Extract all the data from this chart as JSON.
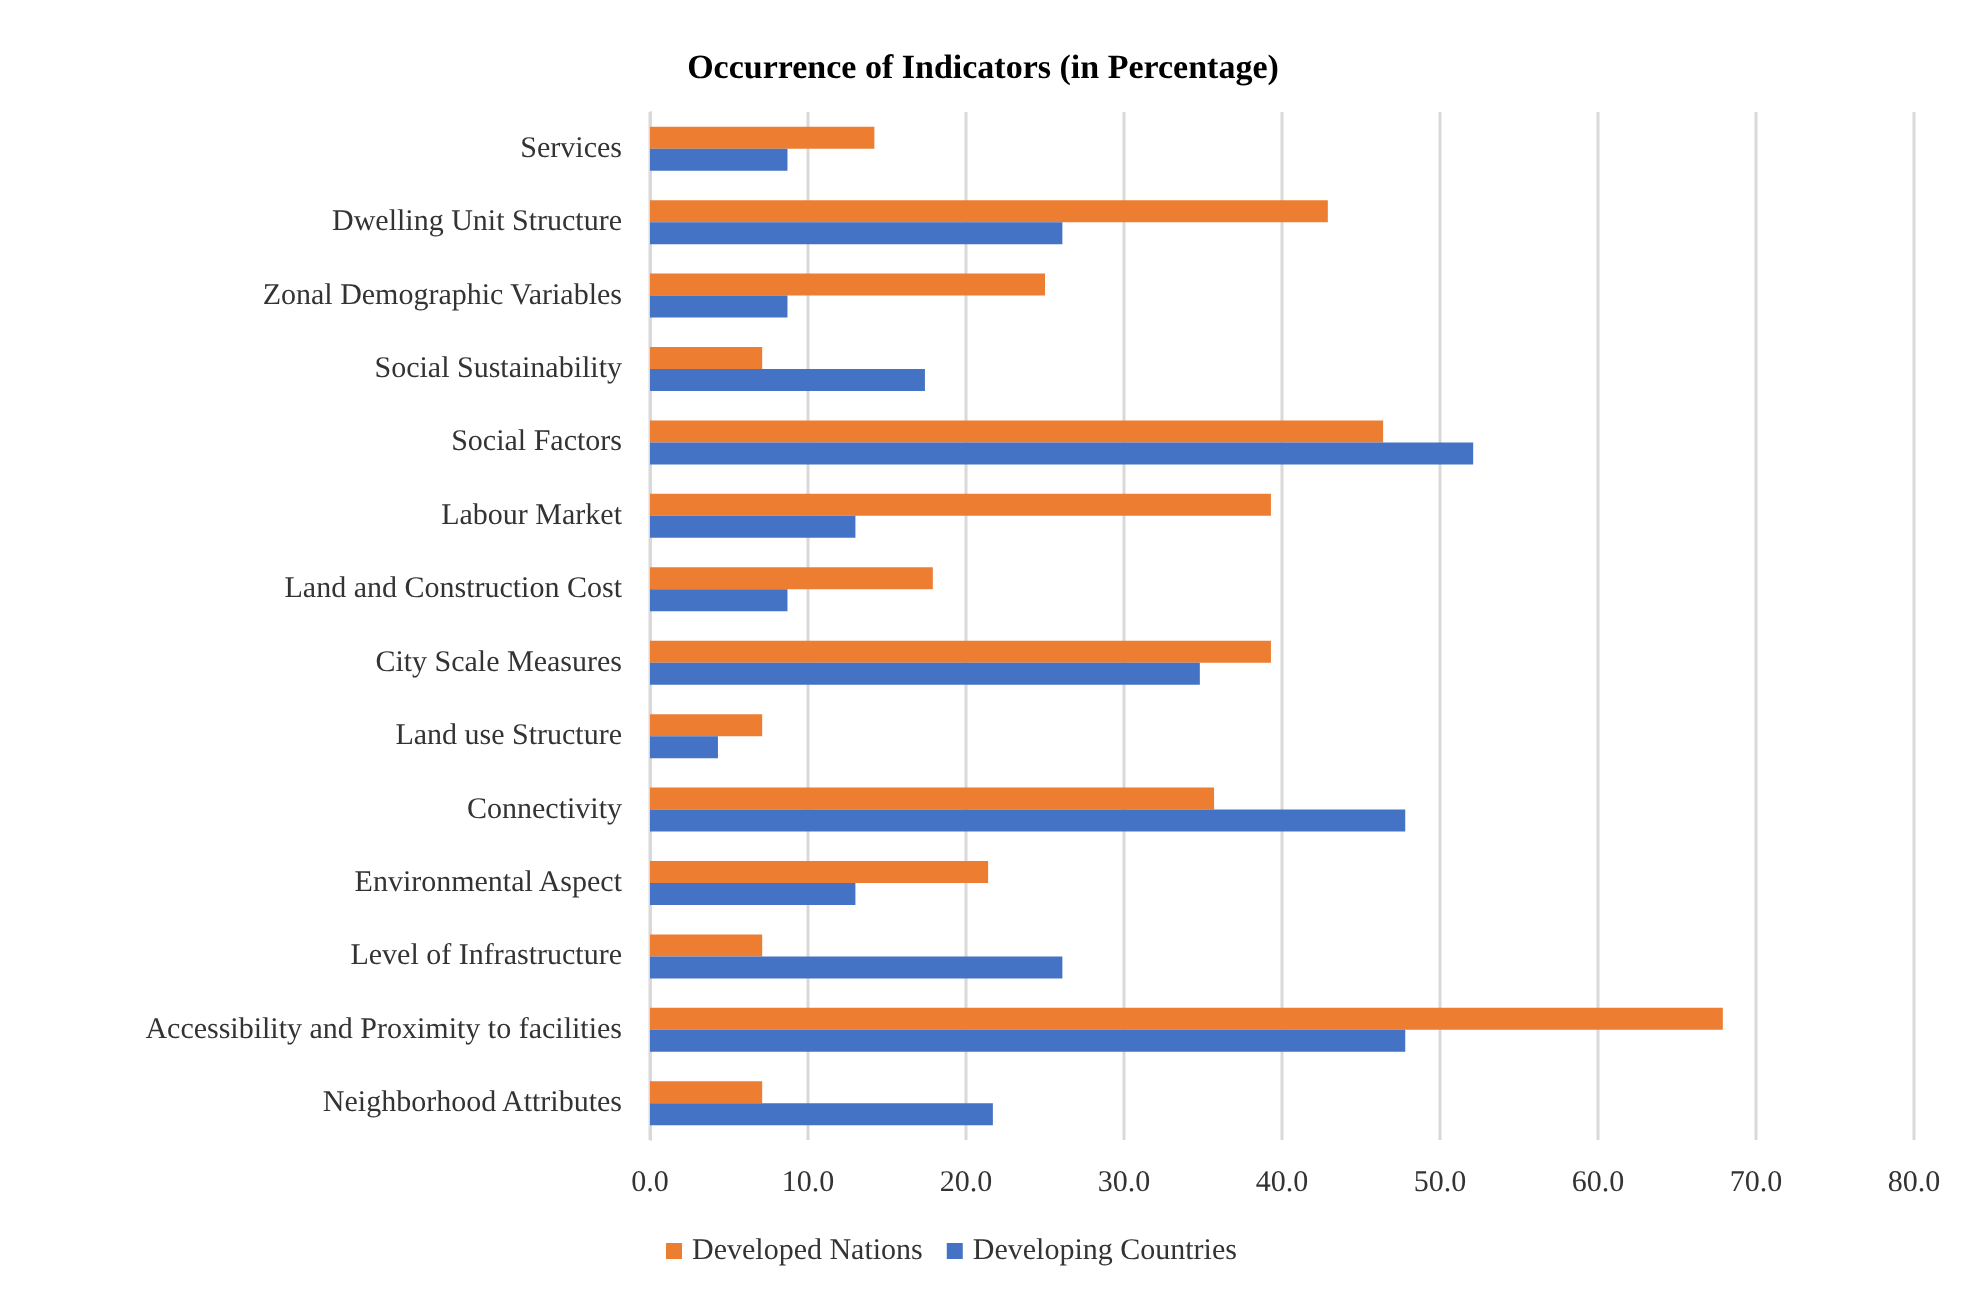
{
  "chart_data": {
    "type": "bar",
    "orientation": "horizontal",
    "title": "Occurrence of Indicators (in Percentage)",
    "categories": [
      "Services",
      "Dwelling Unit Structure",
      "Zonal Demographic Variables",
      "Social Sustainability",
      "Social Factors",
      "Labour Market",
      "Land and Construction Cost",
      "City Scale Measures",
      "Land use Structure",
      "Connectivity",
      "Environmental Aspect",
      "Level of Infrastructure",
      "Accessibility and Proximity to facilities",
      "Neighborhood Attributes"
    ],
    "series": [
      {
        "name": "Developed Nations",
        "color": "#ed7d31",
        "values": [
          14.2,
          42.9,
          25.0,
          7.1,
          46.4,
          39.3,
          17.9,
          39.3,
          7.1,
          35.7,
          21.4,
          7.1,
          67.9,
          7.1
        ]
      },
      {
        "name": "Developing Countries",
        "color": "#4472c4",
        "values": [
          8.7,
          26.1,
          8.7,
          17.4,
          52.1,
          13.0,
          8.7,
          34.8,
          4.3,
          47.8,
          13.0,
          26.1,
          47.8,
          21.7
        ]
      }
    ],
    "xlim": [
      0,
      80
    ],
    "xticks": [
      {
        "value": 0,
        "label": "0.0"
      },
      {
        "value": 10,
        "label": "10.0"
      },
      {
        "value": 20,
        "label": "20.0"
      },
      {
        "value": 30,
        "label": "30.0"
      },
      {
        "value": 40,
        "label": "40.0"
      },
      {
        "value": 50,
        "label": "50.0"
      },
      {
        "value": 60,
        "label": "60.0"
      },
      {
        "value": 70,
        "label": "70.0"
      },
      {
        "value": 80,
        "label": "80.0"
      }
    ],
    "grid": "x",
    "legend": "bottom"
  }
}
